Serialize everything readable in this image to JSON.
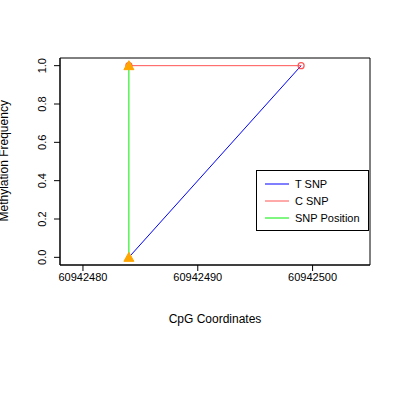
{
  "chart_data": {
    "type": "line",
    "x_label": "CpG Coordinates",
    "y_label": "Methylation Frequency",
    "xlim": [
      60942478,
      60942505
    ],
    "xticks": [
      60942480,
      60942490,
      60942500
    ],
    "ylim": [
      -0.04,
      1.04
    ],
    "yticks": [
      {
        "value": 0,
        "label": "0.0"
      },
      {
        "value": 0.2,
        "label": "0.2"
      },
      {
        "value": 0.4,
        "label": "0.4"
      },
      {
        "value": 0.6,
        "label": "0.6"
      },
      {
        "value": 0.8,
        "label": "0.8"
      },
      {
        "value": 1,
        "label": "1.0"
      }
    ],
    "legend": "right",
    "series": [
      {
        "name": "T SNP",
        "color": "#0000ff",
        "x": [
          60942484,
          60942499
        ],
        "values": [
          0,
          1
        ]
      },
      {
        "name": "C SNP",
        "color": "#ff5555",
        "x": [
          60942484,
          60942499
        ],
        "values": [
          1,
          1
        ],
        "marker": "circle"
      },
      {
        "name": "SNP Position",
        "color": "#00ee00",
        "x": [
          60942484,
          60942484
        ],
        "values": [
          0,
          1
        ],
        "marker": "triangle"
      }
    ]
  }
}
